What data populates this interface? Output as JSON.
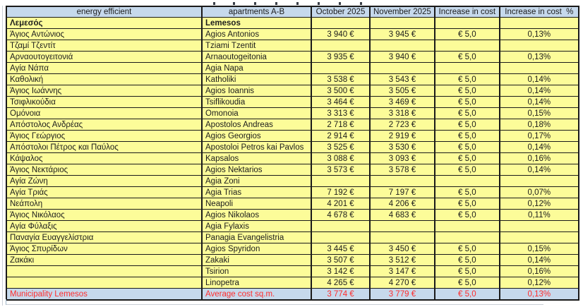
{
  "sheet": {
    "columns": [
      {
        "label": "energy efficient"
      },
      {
        "label": "apartments A-B"
      },
      {
        "label": "October 2025"
      },
      {
        "label": "November 2025"
      },
      {
        "label": "Increase in cost"
      },
      {
        "label": "Increase in cost  %"
      }
    ],
    "rows": [
      {
        "gr": "Λεμεσός",
        "en": "Lemesos",
        "oct": "",
        "nov": "",
        "inc": "",
        "pct": "",
        "style": "bold"
      },
      {
        "gr": "Άγιος Αντώνιος",
        "en": "Agios Antonios",
        "oct": "3 940 €",
        "nov": "3 945 €",
        "inc": "€ 5,0",
        "pct": "0,13%",
        "style": ""
      },
      {
        "gr": "Τζαμί Τζεντίτ",
        "en": "Tziami Tzentit",
        "oct": "",
        "nov": "",
        "inc": "",
        "pct": "",
        "style": ""
      },
      {
        "gr": "Αρναουτογειτονιά",
        "en": "Arnaoutogeitonia",
        "oct": "3 935 €",
        "nov": "3 940 €",
        "inc": "€ 5,0",
        "pct": "0,13%",
        "style": ""
      },
      {
        "gr": "Αγία Νάπα",
        "en": "Agia Napa",
        "oct": "",
        "nov": "",
        "inc": "",
        "pct": "",
        "style": ""
      },
      {
        "gr": "Καθολική",
        "en": "Katholiki",
        "oct": "3 538 €",
        "nov": "3 543 €",
        "inc": "€ 5,0",
        "pct": "0,14%",
        "style": ""
      },
      {
        "gr": "Άγιος Ιωάννης",
        "en": "Agios Ioannis",
        "oct": "3 500 €",
        "nov": "3 505 €",
        "inc": "€ 5,0",
        "pct": "0,14%",
        "style": ""
      },
      {
        "gr": "Τσιφλικούδια",
        "en": "Tsiflikoudia",
        "oct": "3 464 €",
        "nov": "3 469 €",
        "inc": "€ 5,0",
        "pct": "0,14%",
        "style": ""
      },
      {
        "gr": "Ομόνοια",
        "en": "Omonoia",
        "oct": "3 313 €",
        "nov": "3 318 €",
        "inc": "€ 5,0",
        "pct": "0,15%",
        "style": ""
      },
      {
        "gr": "Απόστολος Ανδρέας",
        "en": "Apostolos Andreas",
        "oct": "2 718 €",
        "nov": "2 723 €",
        "inc": "€ 5,0",
        "pct": "0,18%",
        "style": ""
      },
      {
        "gr": "Άγιος Γεώργιος",
        "en": "Agios Georgios",
        "oct": "2 914 €",
        "nov": "2 919 €",
        "inc": "€ 5,0",
        "pct": "0,17%",
        "style": ""
      },
      {
        "gr": "Απόστολοι Πέτρος και Παύλος",
        "en": "Apostoloi Petros kai Pavlos",
        "oct": "3 525 €",
        "nov": "3 530 €",
        "inc": "€ 5,0",
        "pct": "0,14%",
        "style": ""
      },
      {
        "gr": "Κάψαλος",
        "en": "Kapsalos",
        "oct": "3 088 €",
        "nov": "3 093 €",
        "inc": "€ 5,0",
        "pct": "0,16%",
        "style": ""
      },
      {
        "gr": "Άγιος Νεκτάριος",
        "en": "Agios Nektarios",
        "oct": "3 573 €",
        "nov": "3 578 €",
        "inc": "€ 5,0",
        "pct": "0,14%",
        "style": ""
      },
      {
        "gr": "Αγία Ζώνη",
        "en": "Agia Zoni",
        "oct": "",
        "nov": "",
        "inc": "",
        "pct": "",
        "style": ""
      },
      {
        "gr": "Αγία Τριάς",
        "en": "Agia Trias",
        "oct": "7 192 €",
        "nov": "7 197 €",
        "inc": "€ 5,0",
        "pct": "0,07%",
        "style": ""
      },
      {
        "gr": "Νεάπολη",
        "en": "Neapoli",
        "oct": "4 201 €",
        "nov": "4 206 €",
        "inc": "€ 5,0",
        "pct": "0,12%",
        "style": ""
      },
      {
        "gr": "Άγιος Νικόλαος",
        "en": "Agios Nikolaos",
        "oct": "4 678 €",
        "nov": "4 683 €",
        "inc": "€ 5,0",
        "pct": "0,11%",
        "style": ""
      },
      {
        "gr": "Αγία Φύλαξις",
        "en": "Agia Fylaxis",
        "oct": "",
        "nov": "",
        "inc": "",
        "pct": "",
        "style": ""
      },
      {
        "gr": "Παναγία Ευαγγελίστρια",
        "en": "Panagia Evangelistria",
        "oct": "",
        "nov": "",
        "inc": "",
        "pct": "",
        "style": ""
      },
      {
        "gr": "Άγιος Σπυρίδων",
        "en": "Agios Spyridon",
        "oct": "3 445 €",
        "nov": "3 450 €",
        "inc": "€ 5,0",
        "pct": "0,15%",
        "style": ""
      },
      {
        "gr": "Ζακάκι",
        "en": "Zakaki",
        "oct": "3 507 €",
        "nov": "3 512 €",
        "inc": "€ 5,0",
        "pct": "0,14%",
        "style": ""
      },
      {
        "gr": "",
        "en": "Tsirion",
        "oct": "3 142 €",
        "nov": "3 147 €",
        "inc": "€ 5,0",
        "pct": "0,16%",
        "style": ""
      },
      {
        "gr": "",
        "en": "Linopetra",
        "oct": "4 265 €",
        "nov": "4 270 €",
        "inc": "€ 5,0",
        "pct": "0,12%",
        "style": ""
      },
      {
        "gr": "Municipality Lemesos",
        "en": "Average cost sq.m.",
        "oct": "3 774 €",
        "nov": "3 779 €",
        "inc": "€ 5,0",
        "pct": "0,13%",
        "style": "footer"
      }
    ],
    "colors": {
      "header_bg": "#C6D9EC",
      "cell_bg": "#FCFC99",
      "footer_bg": "#C6D9EC",
      "footer_text": "#FF2D2D",
      "grid": "#1a1a1a"
    }
  }
}
